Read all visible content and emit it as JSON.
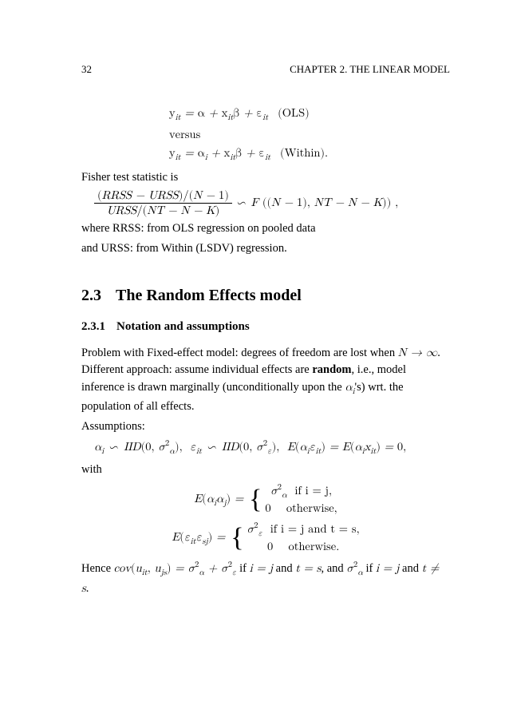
{
  "header": {
    "page_number": "32",
    "running_title": "CHAPTER 2.  THE LINEAR MODEL"
  },
  "intro_equations": {
    "ols": "y_{it} = α + x_{it}β + ε_{it}",
    "ols_tag": "(OLS)",
    "versus": "versus",
    "within": "y_{it} = α_i + x_{it}β + ε_{it}",
    "within_tag": "(Within)."
  },
  "fisher_line": "Fisher test statistic is",
  "fisher_eq": {
    "numerator": "(RRSS − URSS)/(N − 1)",
    "denominator": "URSS/(NT − N − K)",
    "tail": " ∽ F ((N − 1), NT − N − K)) ,"
  },
  "rrss_line": "where RRSS: from OLS regression on pooled data",
  "urss_line": "and URSS: from Within (LSDV) regression.",
  "section": {
    "number": "2.3",
    "title": "The Random Effects model"
  },
  "subsection": {
    "number": "2.3.1",
    "title": "Notation and assumptions"
  },
  "para1_a": "Problem with Fixed-effect model: degrees of freedom are lost when ",
  "para1_b": "N → ∞",
  "para1_c": ". Different approach: assume individual effects are ",
  "para1_d": "random",
  "para1_e": ", i.e., model inference is drawn marginally (unconditionally upon the ",
  "para1_f": "α_i",
  "para1_g": "'s) wrt. the population of all effects.",
  "assump_label": "Assumptions:",
  "assump_eq": "α_i ∽ IID(0, σ_α²),  ε_{it} ∽ IID(0, σ_ε²),  E(α_i ε_{it}) = E(α_i x_{it}) = 0,",
  "with_label": "with",
  "cases1": {
    "lhs": "E(α_i α_j) = ",
    "row1_val": "σ_α²",
    "row1_cond": "if   i = j,",
    "row2_val": "0",
    "row2_cond": "otherwise,"
  },
  "cases2": {
    "lhs": "E(ε_{it} ε_{sj}) = ",
    "row1_val": "σ_ε²",
    "row1_cond": "if   i = j and t = s,",
    "row2_val": "0",
    "row2_cond": "otherwise."
  },
  "final_a": "Hence ",
  "final_b": "cov(u_{it}, u_{js}) = σ_α² + σ_ε²",
  "final_c": " if ",
  "final_d": "i = j",
  "final_e": " and ",
  "final_f": "t = s",
  "final_g": ", and ",
  "final_h": "σ_α²",
  "final_i": " if ",
  "final_j": "i = j",
  "final_k": " and ",
  "final_l": "t ≠ s",
  "final_m": "."
}
